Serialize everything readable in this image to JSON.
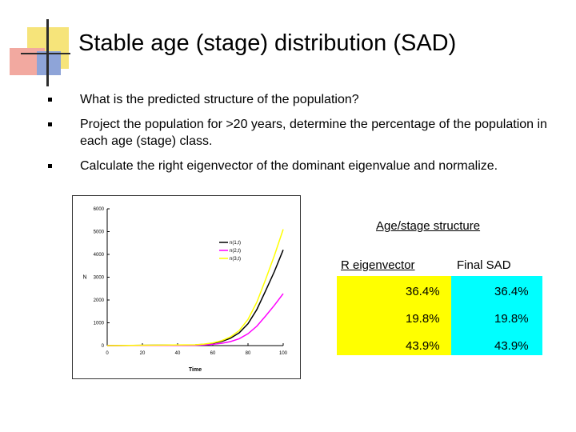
{
  "slide": {
    "title": "Stable age (stage) distribution (SAD)",
    "bullets": [
      "What is the predicted structure of the population?",
      "Project the population for >20 years, determine the percentage of the population in each age (stage) class.",
      "Calculate the right eigenvector of the dominant eigenvalue and normalize."
    ]
  },
  "table": {
    "title": "Age/stage structure",
    "headers": [
      "R eigenvector",
      "Final SAD"
    ],
    "rows": [
      [
        "36.4%",
        "36.4%"
      ],
      [
        "19.8%",
        "19.8%"
      ],
      [
        "43.9%",
        "43.9%"
      ]
    ],
    "colors": {
      "r_eigenvector": "#ffff00",
      "final_sad": "#00ffff"
    }
  },
  "chart_data": {
    "type": "line",
    "xlabel": "Time",
    "ylabel": "N",
    "xlim": [
      0,
      100
    ],
    "ylim": [
      0,
      6000
    ],
    "x_ticks": [
      0,
      20,
      40,
      60,
      80,
      100
    ],
    "y_ticks": [
      0,
      1000,
      2000,
      3000,
      4000,
      5000,
      6000
    ],
    "legend_position": "top-right",
    "grid": false,
    "x": [
      0,
      50,
      55,
      60,
      65,
      70,
      75,
      80,
      85,
      90,
      95,
      100
    ],
    "series": [
      {
        "name": "n(1,t)",
        "color": "#000000",
        "values": [
          0,
          30,
          55,
          100,
          180,
          320,
          560,
          960,
          1580,
          2400,
          3250,
          4200
        ]
      },
      {
        "name": "n(2,t)",
        "color": "#ff00ff",
        "values": [
          0,
          15,
          30,
          55,
          100,
          175,
          300,
          520,
          850,
          1300,
          1770,
          2280
        ]
      },
      {
        "name": "n(3,t)",
        "color": "#ffff00",
        "values": [
          0,
          35,
          65,
          120,
          215,
          380,
          660,
          1150,
          1900,
          2900,
          3950,
          5100
        ]
      }
    ]
  }
}
